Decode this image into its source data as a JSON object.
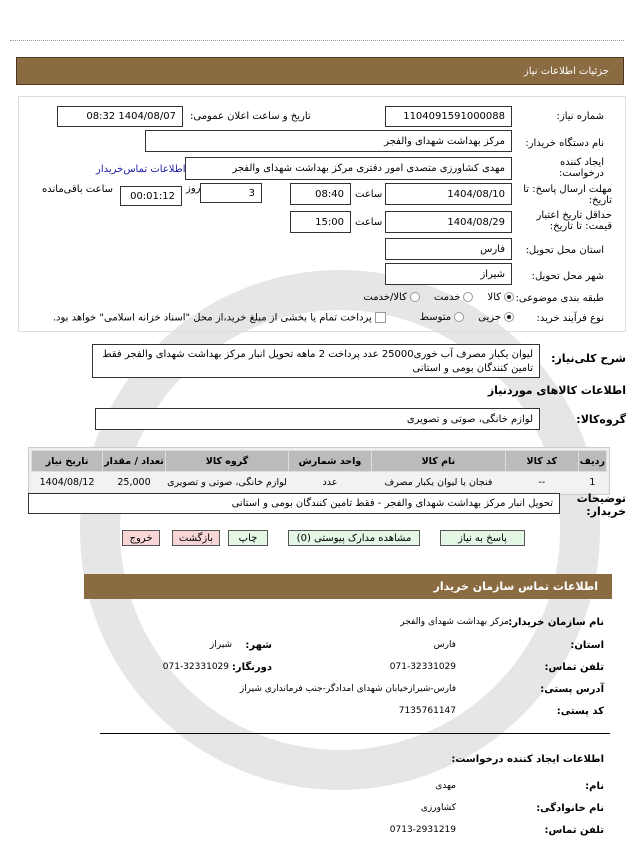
{
  "header": {
    "title": "جزئیات اطلاعات نیاز"
  },
  "form": {
    "need_number_label": "شماره نیاز:",
    "need_number": "1104091591000088",
    "announce_label": "تاریخ و ساعت اعلان عمومی:",
    "announce_value": "1404/08/07 08:32",
    "buyer_label": "نام دستگاه خریدار:",
    "buyer": "مرکز بهداشت شهدای والفجر",
    "creator_label": "ایجاد کننده درخواست:",
    "creator": "مهدی  کشاورزی  متصدی امور  دفتری مرکز بهداشت شهدای والفجر",
    "contact_link": "اطلاعات تماس‌خریدار",
    "deadline_label": "مهلت ارسال پاسخ: تا تاریخ:",
    "deadline_date": "1404/08/10",
    "time_label": "ساعت",
    "deadline_time": "08:40",
    "days_label": "روز",
    "days": "3",
    "remaining_label": "ساعت باقی‌مانده",
    "remaining": "00:01:12",
    "validity_label": "حداقل تاریخ اعتبار قیمت: تا تاریخ:",
    "validity_date": "1404/08/29",
    "validity_time": "15:00",
    "province_label": "استان محل تحویل:",
    "province": "فارس",
    "city_label": "شهر محل تحویل:",
    "city": "شیراز",
    "category_label": "طبقه بندی موضوعی:",
    "category_options": [
      "کالا",
      "خدمت",
      "کالا/خدمت"
    ],
    "purchase_label": "نوع فرآیند خرید:",
    "purchase_options": [
      "جزیی",
      "متوسط"
    ],
    "payment_note": "پرداخت تمام یا بخشی از مبلغ خرید،از محل \"اسناد خزانه اسلامی\" خواهد بود."
  },
  "description": {
    "label": "شرح کلی‌نیاز:",
    "text": "لیوان یکبار مصرف آب خوری25000 عدد پرداخت 2 ماهه تحویل انبار مرکز بهداشت شهدای والفجر فقط تامین کنندگان بومی و استانی"
  },
  "goods": {
    "title": "اطلاعات کالاهای موردنیاز",
    "group_label": "گروه‌کالا:",
    "group": "لوازم خانگی، صوتی و تصویری",
    "columns": [
      "ردیف",
      "کد کالا",
      "نام کالا",
      "واحد شمارش",
      "گروه کالا",
      "تعداد / مقدار",
      "تاریخ نیاز"
    ],
    "rows": [
      [
        "1",
        "--",
        "فنجان یا لیوان یکبار مصرف",
        "عدد",
        "لوازم خانگی، صوتی و تصویری",
        "25,000",
        "1404/08/12"
      ]
    ]
  },
  "notes": {
    "label": "توضیحات خریدار:",
    "text": "تحویل انبار مرکز بهداشت شهدای والفجر - فقط تامین کنندگان بومی و استانی"
  },
  "buttons": {
    "reply": "پاسخ به نیاز",
    "docs": "مشاهده مدارک پیوستی (0)",
    "print": "چاپ",
    "back": "بازگشت",
    "exit": "خروج"
  },
  "contact": {
    "title": "اطلاعات تماس سازمان خریدار",
    "org_label": "نام سازمان خریدار:",
    "org": "مرکز بهداشت شهدای والفجر",
    "province_label": "استان:",
    "province": "فارس",
    "city_label": "شهر:",
    "city": "شیراز",
    "phone_label": "تلفن تماس:",
    "phone": "071-32331029",
    "fax_label": "دورنگار:",
    "fax": "071-32331029",
    "address_label": "آدرس پستی:",
    "address": "فارس-شیرازخیابان شهدای امدادگر-جنب فرمانداری شیراز",
    "postal_label": "کد پستی:",
    "postal": "7135761147",
    "creator_title": "اطلاعات ایجاد کننده درخواست:",
    "name_label": "نام:",
    "name": "مهدی",
    "family_label": "نام خانوادگی:",
    "family": "کشاورزی",
    "cphone_label": "تلفن تماس:",
    "cphone": "0713-2931219"
  },
  "colors": {
    "header": "#8b6c42",
    "button_green": "#e4f6e4",
    "button_red": "#f8d6d6",
    "link": "#1a1aa6"
  }
}
